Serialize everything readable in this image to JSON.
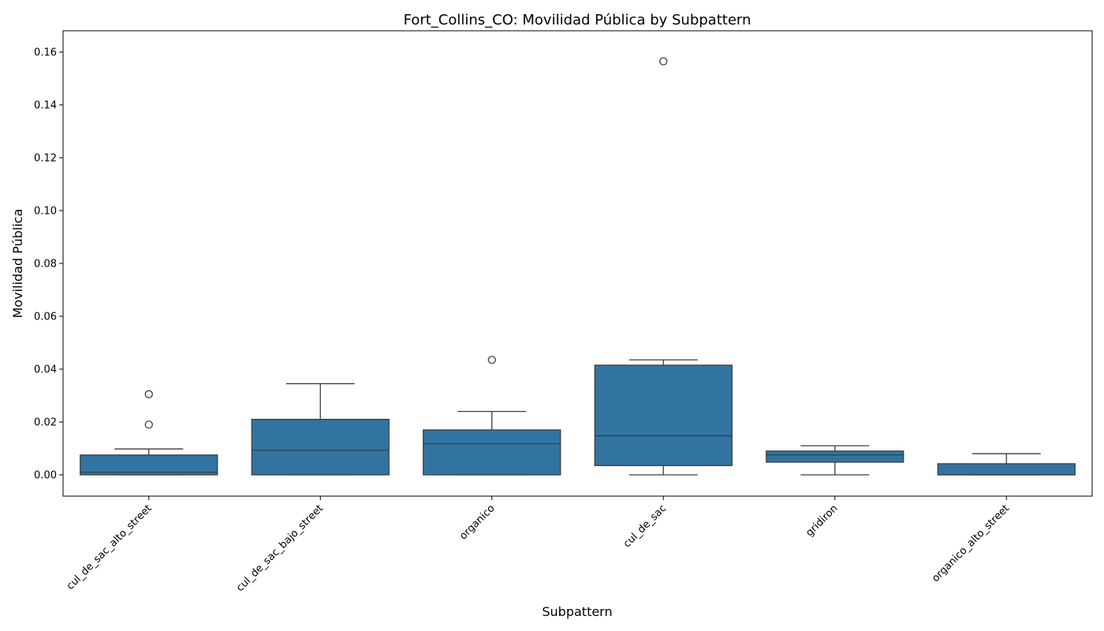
{
  "chart_data": {
    "type": "box",
    "title": "Fort_Collins_CO: Movilidad Pública by Subpattern",
    "xlabel": "Subpattern",
    "ylabel": "Movilidad Pública",
    "ylim": [
      -0.008,
      0.1645
    ],
    "yticks": [
      "0.00",
      "0.02",
      "0.04",
      "0.06",
      "0.08",
      "0.10",
      "0.12",
      "0.14",
      "0.16"
    ],
    "ytick_values": [
      0,
      0.02,
      0.04,
      0.06,
      0.08,
      0.1,
      0.12,
      0.14,
      0.16
    ],
    "grid": false,
    "box_color": "#3274a1",
    "line_color": "#3d3d3d",
    "categories": [
      "cul_de_sac_alto_street",
      "cul_de_sac_bajo_street",
      "organico",
      "cul_de_sac",
      "gridiron",
      "organico_alto_street"
    ],
    "boxes": [
      {
        "category": "cul_de_sac_alto_street",
        "whisker_low": 0.0,
        "q1": 0.0,
        "median": 0.001,
        "q3": 0.0075,
        "whisker_high": 0.0098,
        "outliers": [
          0.019,
          0.0305
        ]
      },
      {
        "category": "cul_de_sac_bajo_street",
        "whisker_low": 0.0,
        "q1": 0.0,
        "median": 0.0093,
        "q3": 0.021,
        "whisker_high": 0.0345,
        "outliers": []
      },
      {
        "category": "organico",
        "whisker_low": 0.0,
        "q1": 0.0,
        "median": 0.0118,
        "q3": 0.017,
        "whisker_high": 0.024,
        "outliers": [
          0.0435
        ]
      },
      {
        "category": "cul_de_sac",
        "whisker_low": 0.0,
        "q1": 0.0035,
        "median": 0.0148,
        "q3": 0.0415,
        "whisker_high": 0.0435,
        "outliers": [
          0.1565
        ]
      },
      {
        "category": "gridiron",
        "whisker_low": 0.0,
        "q1": 0.0048,
        "median": 0.0075,
        "q3": 0.009,
        "whisker_high": 0.011,
        "outliers": []
      },
      {
        "category": "organico_alto_street",
        "whisker_low": 0.0,
        "q1": 0.0,
        "median": 0.0,
        "q3": 0.0042,
        "whisker_high": 0.008,
        "outliers": []
      }
    ]
  }
}
